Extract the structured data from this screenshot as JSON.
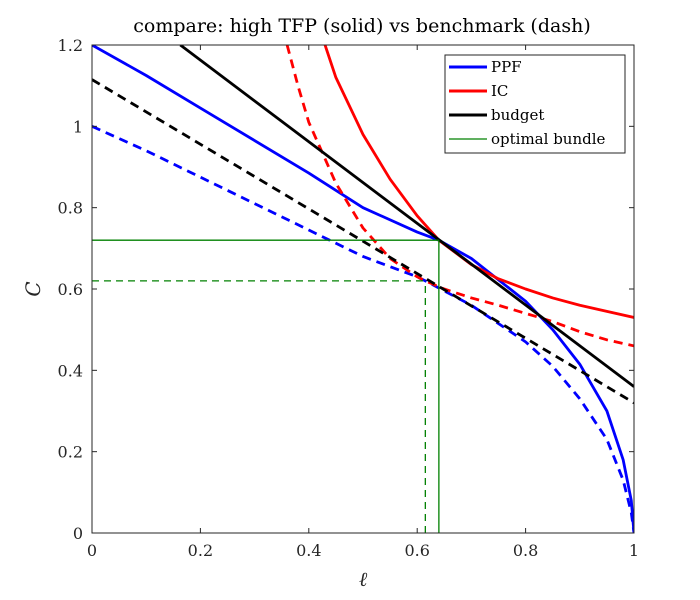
{
  "chart_data": {
    "type": "line",
    "title": "compare: high TFP (solid) vs benchmark (dash)",
    "xlabel": "ℓ",
    "ylabel": "C",
    "xlim": [
      0,
      1
    ],
    "ylim": [
      0,
      1.2
    ],
    "xticks": [
      0,
      0.2,
      0.4,
      0.6,
      0.8,
      1
    ],
    "xtick_labels": [
      "0",
      "0.2",
      "0.4",
      "0.6",
      "0.8",
      "1"
    ],
    "yticks": [
      0,
      0.2,
      0.4,
      0.6,
      0.8,
      1,
      1.2
    ],
    "ytick_labels": [
      "0",
      "0.2",
      "0.4",
      "0.6",
      "0.8",
      "1",
      "1.2"
    ],
    "grid": false,
    "legend_position": "top-right",
    "legend": [
      {
        "label": "PPF",
        "color": "#0000ff",
        "width": 3
      },
      {
        "label": "IC",
        "color": "#ff0000",
        "width": 3
      },
      {
        "label": "budget",
        "color": "#000000",
        "width": 3
      },
      {
        "label": "optimal bundle",
        "color": "#008000",
        "width": 1.3
      }
    ],
    "series": [
      {
        "key": "ppf-high",
        "color": "#0000ff",
        "dash": false,
        "width": 2.8,
        "x": [
          0,
          0.1,
          0.2,
          0.3,
          0.4,
          0.5,
          0.6,
          0.64,
          0.7,
          0.8,
          0.85,
          0.9,
          0.95,
          0.98,
          0.995,
          1
        ],
        "y": [
          1.2,
          1.125,
          1.045,
          0.965,
          0.885,
          0.8,
          0.74,
          0.72,
          0.675,
          0.57,
          0.5,
          0.415,
          0.3,
          0.18,
          0.08,
          0
        ]
      },
      {
        "key": "ppf-bench",
        "color": "#0000ff",
        "dash": true,
        "width": 2.8,
        "x": [
          0,
          0.1,
          0.2,
          0.3,
          0.4,
          0.5,
          0.6,
          0.615,
          0.7,
          0.8,
          0.85,
          0.9,
          0.95,
          0.98,
          0.995,
          1
        ],
        "y": [
          1.0,
          0.94,
          0.875,
          0.81,
          0.745,
          0.68,
          0.63,
          0.62,
          0.56,
          0.47,
          0.41,
          0.33,
          0.23,
          0.13,
          0.05,
          0
        ]
      },
      {
        "key": "ic-high",
        "color": "#ff0000",
        "dash": false,
        "width": 2.8,
        "x": [
          0.43,
          0.45,
          0.5,
          0.55,
          0.6,
          0.64,
          0.7,
          0.75,
          0.8,
          0.85,
          0.9,
          0.95,
          1
        ],
        "y": [
          1.2,
          1.12,
          0.98,
          0.87,
          0.78,
          0.72,
          0.66,
          0.625,
          0.6,
          0.578,
          0.56,
          0.545,
          0.53
        ]
      },
      {
        "key": "ic-bench",
        "color": "#ff0000",
        "dash": true,
        "width": 2.8,
        "x": [
          0.36,
          0.38,
          0.4,
          0.45,
          0.5,
          0.55,
          0.6,
          0.615,
          0.65,
          0.7,
          0.75,
          0.8,
          0.85,
          0.9,
          0.95,
          1
        ],
        "y": [
          1.2,
          1.1,
          1.01,
          0.86,
          0.75,
          0.675,
          0.63,
          0.62,
          0.6,
          0.578,
          0.56,
          0.54,
          0.52,
          0.495,
          0.475,
          0.46
        ]
      },
      {
        "key": "budget-high",
        "color": "#000000",
        "dash": false,
        "width": 2.8,
        "x": [
          0.163,
          1
        ],
        "y": [
          1.2,
          0.36
        ]
      },
      {
        "key": "budget-bench",
        "color": "#000000",
        "dash": true,
        "width": 2.8,
        "x": [
          0,
          1
        ],
        "y": [
          1.115,
          0.32
        ]
      },
      {
        "key": "opt-h-high",
        "color": "#008000",
        "dash": false,
        "width": 1.3,
        "x": [
          0,
          0.64
        ],
        "y": [
          0.72,
          0.72
        ]
      },
      {
        "key": "opt-v-high",
        "color": "#008000",
        "dash": false,
        "width": 1.3,
        "x": [
          0.64,
          0.64
        ],
        "y": [
          0,
          0.72
        ]
      },
      {
        "key": "opt-h-bench",
        "color": "#008000",
        "dash": true,
        "width": 1.3,
        "x": [
          0,
          0.615
        ],
        "y": [
          0.62,
          0.62
        ]
      },
      {
        "key": "opt-v-bench",
        "color": "#008000",
        "dash": true,
        "width": 1.3,
        "x": [
          0.615,
          0.615
        ],
        "y": [
          0,
          0.62
        ]
      }
    ]
  }
}
